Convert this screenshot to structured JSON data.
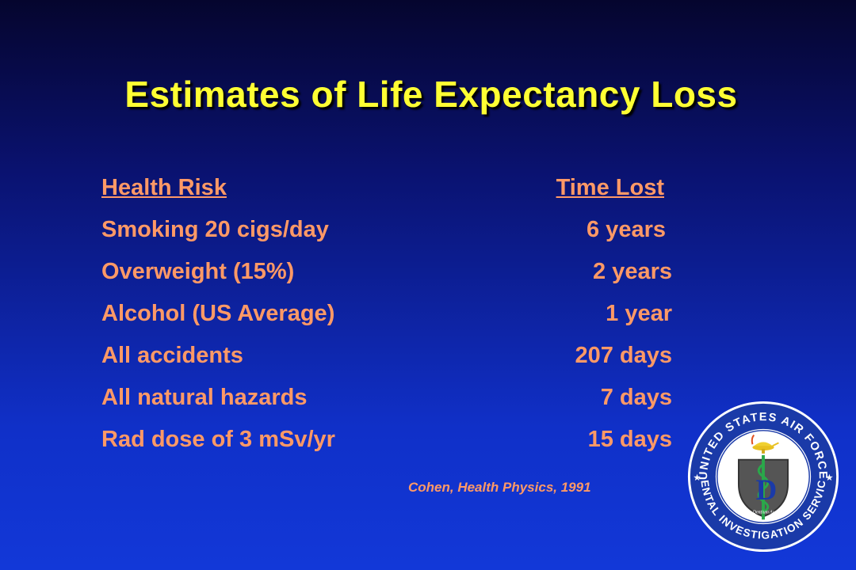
{
  "slide": {
    "title": "Estimates of Life Expectancy Loss",
    "columns": {
      "risk": "Health Risk",
      "time": "Time Lost"
    },
    "rows": [
      {
        "risk": "Smoking 20 cigs/day",
        "time": "6 years"
      },
      {
        "risk": "Overweight (15%)",
        "time": "2 years"
      },
      {
        "risk": "Alcohol (US Average)",
        "time": "1 year"
      },
      {
        "risk": "All accidents",
        "time": "207 days"
      },
      {
        "risk": "All natural hazards",
        "time": "7 days"
      },
      {
        "risk": "Rad dose of 3 mSv/yr",
        "time": "15 days"
      }
    ],
    "citation": "Cohen, Health Physics, 1991"
  },
  "seal": {
    "top_text": "UNITED STATES AIR FORCE",
    "bottom_text": "DENTAL INVESTIGATION SERVICE",
    "shield_letter": "D",
    "motto": "Medicus Dentium Auxiliarum"
  },
  "colors": {
    "title": "#ffff33",
    "body_text": "#ff9966",
    "background_top": "#05052e",
    "background_bottom": "#1238d8",
    "seal_ring": "#1a3aa8",
    "shield": "#555555",
    "caduceus": "#2aa84a"
  }
}
